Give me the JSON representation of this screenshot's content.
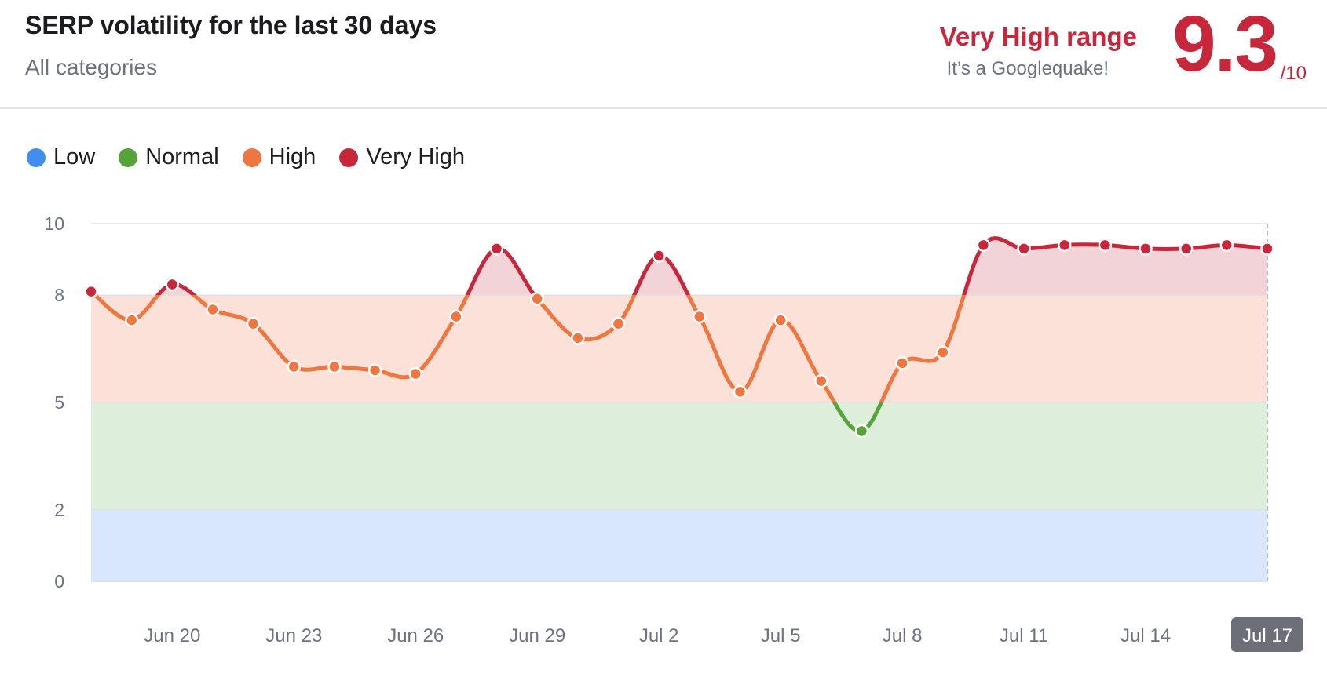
{
  "header": {
    "title": "SERP volatility for the last 30 days",
    "subtitle": "All categories",
    "range_label": "Very High range",
    "range_desc": "It’s a Googlequake!",
    "score": "9.3",
    "score_max": "/10"
  },
  "legend": [
    {
      "label": "Low",
      "color": "#3f8ef0"
    },
    {
      "label": "Normal",
      "color": "#56a33a"
    },
    {
      "label": "High",
      "color": "#f0763f"
    },
    {
      "label": "Very High",
      "color": "#c8263a"
    }
  ],
  "colors": {
    "low_band": "#d8e7fc",
    "normal_band": "#ddeeda",
    "high_band": "#fbe1d8",
    "very_high_band": "#f2d4d8",
    "grid": "#dfe1e5",
    "highlight_label_bg": "#6c6f77"
  },
  "chart_data": {
    "type": "line",
    "title": "SERP volatility for the last 30 days",
    "ylim": [
      0,
      10
    ],
    "y_ticks": [
      0,
      2,
      5,
      8,
      10
    ],
    "x_tick_labels": [
      "Jun 20",
      "Jun 23",
      "Jun 26",
      "Jun 29",
      "Jul 2",
      "Jul 5",
      "Jul 8",
      "Jul 11",
      "Jul 14",
      "Jul 17"
    ],
    "highlighted_label": "Jul 17",
    "bands": [
      {
        "name": "Low",
        "from": 0,
        "to": 2
      },
      {
        "name": "Normal",
        "from": 2,
        "to": 5
      },
      {
        "name": "High",
        "from": 5,
        "to": 8
      },
      {
        "name": "Very High",
        "from": 8,
        "to": 10
      }
    ],
    "x": [
      "Jun 18",
      "Jun 19",
      "Jun 20",
      "Jun 21",
      "Jun 22",
      "Jun 23",
      "Jun 24",
      "Jun 25",
      "Jun 26",
      "Jun 27",
      "Jun 28",
      "Jun 29",
      "Jun 30",
      "Jul 1",
      "Jul 2",
      "Jul 3",
      "Jul 4",
      "Jul 5",
      "Jul 6",
      "Jul 7",
      "Jul 8",
      "Jul 9",
      "Jul 10",
      "Jul 11",
      "Jul 12",
      "Jul 13",
      "Jul 14",
      "Jul 15",
      "Jul 16",
      "Jul 17"
    ],
    "values": [
      8.1,
      7.3,
      8.3,
      7.6,
      7.2,
      6.0,
      6.0,
      5.9,
      5.8,
      7.4,
      9.3,
      7.9,
      6.8,
      7.2,
      9.1,
      7.4,
      5.3,
      7.3,
      5.6,
      4.2,
      6.1,
      6.4,
      9.4,
      9.3,
      9.4,
      9.4,
      9.3,
      9.3,
      9.4,
      9.3
    ]
  }
}
